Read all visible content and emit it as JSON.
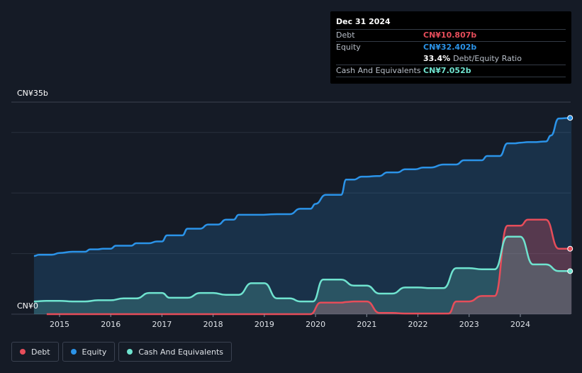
{
  "tooltip": {
    "date": "Dec 31 2024",
    "rows": [
      {
        "label": "Debt",
        "value": "CN¥10.807b"
      },
      {
        "label": "Equity",
        "value": "CN¥32.402b"
      },
      {
        "ratio_value": "33.4%",
        "ratio_label": "Debt/Equity Ratio"
      },
      {
        "label": "Cash And Equivalents",
        "value": "CN¥7.052b"
      }
    ]
  },
  "colors": {
    "debt": "#e64d5a",
    "equity": "#2b93e8",
    "cash": "#6fe3cf",
    "background": "#151b26"
  },
  "legend": [
    {
      "label": "Debt",
      "color": "#e64d5a"
    },
    {
      "label": "Equity",
      "color": "#2b93e8"
    },
    {
      "label": "Cash And Equivalents",
      "color": "#6fe3cf"
    }
  ],
  "chart_data": {
    "type": "area",
    "title": "",
    "xlabel": "",
    "ylabel": "",
    "y_unit": "CN¥ billions",
    "ylim": [
      0,
      35
    ],
    "xlim": [
      2014.5,
      2025.0
    ],
    "y_tick_labels": [
      {
        "value": 35,
        "label": "CN¥35b"
      },
      {
        "value": 0,
        "label": "CN¥0"
      }
    ],
    "x_ticks": [
      2015,
      2016,
      2017,
      2018,
      2019,
      2020,
      2021,
      2022,
      2023,
      2024
    ],
    "x_tick_labels": [
      "2015",
      "2016",
      "2017",
      "2018",
      "2019",
      "2020",
      "2021",
      "2022",
      "2023",
      "2024"
    ],
    "series": [
      {
        "name": "Equity",
        "points": [
          [
            2014.5,
            9.6
          ],
          [
            2014.6,
            9.8
          ],
          [
            2014.75,
            9.8
          ],
          [
            2014.85,
            9.8
          ],
          [
            2015.0,
            10.1
          ],
          [
            2015.25,
            10.3
          ],
          [
            2015.5,
            10.3
          ],
          [
            2015.6,
            10.7
          ],
          [
            2015.75,
            10.7
          ],
          [
            2015.85,
            10.8
          ],
          [
            2016.0,
            10.8
          ],
          [
            2016.1,
            11.3
          ],
          [
            2016.25,
            11.3
          ],
          [
            2016.4,
            11.3
          ],
          [
            2016.5,
            11.7
          ],
          [
            2016.75,
            11.7
          ],
          [
            2016.9,
            12.0
          ],
          [
            2017.0,
            12.0
          ],
          [
            2017.1,
            13.0
          ],
          [
            2017.4,
            13.0
          ],
          [
            2017.5,
            14.1
          ],
          [
            2017.75,
            14.1
          ],
          [
            2017.9,
            14.8
          ],
          [
            2018.1,
            14.8
          ],
          [
            2018.25,
            15.6
          ],
          [
            2018.4,
            15.6
          ],
          [
            2018.5,
            16.4
          ],
          [
            2018.75,
            16.4
          ],
          [
            2018.9,
            16.4
          ],
          [
            2019.25,
            16.5
          ],
          [
            2019.5,
            16.5
          ],
          [
            2019.7,
            17.4
          ],
          [
            2019.9,
            17.4
          ],
          [
            2020.0,
            18.2
          ],
          [
            2020.2,
            19.7
          ],
          [
            2020.5,
            19.7
          ],
          [
            2020.6,
            22.2
          ],
          [
            2020.75,
            22.2
          ],
          [
            2020.9,
            22.7
          ],
          [
            2021.0,
            22.7
          ],
          [
            2021.2,
            22.8
          ],
          [
            2021.25,
            22.8
          ],
          [
            2021.4,
            23.4
          ],
          [
            2021.6,
            23.4
          ],
          [
            2021.75,
            23.9
          ],
          [
            2021.95,
            23.9
          ],
          [
            2022.1,
            24.2
          ],
          [
            2022.25,
            24.2
          ],
          [
            2022.5,
            24.7
          ],
          [
            2022.75,
            24.7
          ],
          [
            2022.9,
            25.4
          ],
          [
            2023.25,
            25.4
          ],
          [
            2023.35,
            26.1
          ],
          [
            2023.6,
            26.1
          ],
          [
            2023.75,
            28.2
          ],
          [
            2023.9,
            28.2
          ],
          [
            2024.0,
            28.3
          ],
          [
            2024.15,
            28.4
          ],
          [
            2024.25,
            28.4
          ],
          [
            2024.5,
            28.5
          ],
          [
            2024.6,
            29.5
          ],
          [
            2024.75,
            32.3
          ],
          [
            2025.0,
            32.4
          ]
        ]
      },
      {
        "name": "Debt",
        "points": [
          [
            2014.75,
            0.0
          ],
          [
            2019.9,
            0.0
          ],
          [
            2020.1,
            1.9
          ],
          [
            2020.25,
            1.9
          ],
          [
            2020.5,
            1.9
          ],
          [
            2020.6,
            2.0
          ],
          [
            2020.75,
            2.1
          ],
          [
            2021.0,
            2.1
          ],
          [
            2021.25,
            0.2
          ],
          [
            2021.5,
            0.2
          ],
          [
            2021.75,
            0.1
          ],
          [
            2022.25,
            0.1
          ],
          [
            2022.5,
            0.1
          ],
          [
            2022.6,
            0.1
          ],
          [
            2022.75,
            2.1
          ],
          [
            2023.0,
            2.1
          ],
          [
            2023.25,
            3.0
          ],
          [
            2023.5,
            3.0
          ],
          [
            2023.75,
            14.6
          ],
          [
            2024.0,
            14.6
          ],
          [
            2024.15,
            15.6
          ],
          [
            2024.25,
            15.6
          ],
          [
            2024.5,
            15.6
          ],
          [
            2024.75,
            10.8
          ],
          [
            2025.0,
            10.8
          ]
        ]
      },
      {
        "name": "Cash And Equivalents",
        "points": [
          [
            2014.5,
            2.1
          ],
          [
            2014.75,
            2.2
          ],
          [
            2015.0,
            2.2
          ],
          [
            2015.25,
            2.1
          ],
          [
            2015.5,
            2.1
          ],
          [
            2015.75,
            2.3
          ],
          [
            2016.0,
            2.3
          ],
          [
            2016.25,
            2.6
          ],
          [
            2016.5,
            2.6
          ],
          [
            2016.75,
            3.5
          ],
          [
            2017.0,
            3.5
          ],
          [
            2017.15,
            2.7
          ],
          [
            2017.5,
            2.7
          ],
          [
            2017.75,
            3.5
          ],
          [
            2018.0,
            3.5
          ],
          [
            2018.25,
            3.2
          ],
          [
            2018.5,
            3.2
          ],
          [
            2018.75,
            5.1
          ],
          [
            2019.0,
            5.1
          ],
          [
            2019.25,
            2.6
          ],
          [
            2019.5,
            2.6
          ],
          [
            2019.7,
            2.1
          ],
          [
            2019.95,
            2.1
          ],
          [
            2020.15,
            5.7
          ],
          [
            2020.5,
            5.7
          ],
          [
            2020.75,
            4.7
          ],
          [
            2021.0,
            4.7
          ],
          [
            2021.25,
            3.4
          ],
          [
            2021.5,
            3.4
          ],
          [
            2021.75,
            4.4
          ],
          [
            2022.0,
            4.4
          ],
          [
            2022.25,
            4.3
          ],
          [
            2022.5,
            4.3
          ],
          [
            2022.75,
            7.6
          ],
          [
            2023.0,
            7.6
          ],
          [
            2023.25,
            7.4
          ],
          [
            2023.5,
            7.4
          ],
          [
            2023.75,
            12.8
          ],
          [
            2024.0,
            12.8
          ],
          [
            2024.25,
            8.2
          ],
          [
            2024.5,
            8.2
          ],
          [
            2024.75,
            7.1
          ],
          [
            2025.0,
            7.1
          ]
        ]
      }
    ],
    "tooltip_date": "Dec 31 2024",
    "legend_position": "bottom-left"
  }
}
